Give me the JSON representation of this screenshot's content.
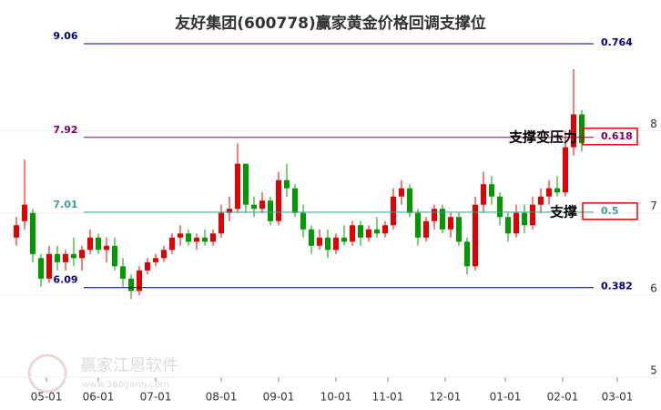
{
  "chart_data": {
    "type": "candlestick",
    "title": "友好集团(600778)赢家黄金价格回调支撑位",
    "up_color": "#e00000",
    "down_color": "#009900",
    "xlim": [
      0,
      236
    ],
    "xticks": [
      {
        "value": 11,
        "label": "05-01"
      },
      {
        "value": 30,
        "label": "06-01"
      },
      {
        "value": 51,
        "label": "07-01"
      },
      {
        "value": 75,
        "label": "08-01"
      },
      {
        "value": 96,
        "label": "09-01"
      },
      {
        "value": 117,
        "label": "10-01"
      },
      {
        "value": 136,
        "label": "11-01"
      },
      {
        "value": 157,
        "label": "12-01"
      },
      {
        "value": 179,
        "label": "01-01"
      },
      {
        "value": 200,
        "label": "02-01"
      },
      {
        "value": 220,
        "label": "03-01"
      }
    ],
    "ylim": [
      5,
      9.26
    ],
    "yticks": [
      5,
      6,
      7,
      8
    ],
    "x": [
      0,
      3,
      6,
      9,
      12,
      15,
      18,
      21,
      24,
      27,
      30,
      33,
      36,
      39,
      42,
      45,
      48,
      51,
      54,
      57,
      60,
      63,
      66,
      69,
      72,
      75,
      78,
      81,
      84,
      87,
      90,
      93,
      96,
      99,
      102,
      105,
      108,
      111,
      114,
      117,
      120,
      123,
      126,
      129,
      132,
      135,
      138,
      141,
      144,
      147,
      150,
      153,
      156,
      159,
      162,
      165,
      168,
      171,
      174,
      177,
      180,
      183,
      186,
      189,
      192,
      195,
      198,
      201,
      204,
      207
    ],
    "values": [
      [
        6.7,
        6.95,
        6.6,
        6.85
      ],
      [
        6.9,
        7.65,
        6.8,
        7.1
      ],
      [
        7.0,
        7.05,
        6.4,
        6.5
      ],
      [
        6.45,
        6.5,
        6.1,
        6.2
      ],
      [
        6.2,
        6.6,
        6.15,
        6.5
      ],
      [
        6.5,
        6.6,
        6.3,
        6.4
      ],
      [
        6.4,
        6.55,
        6.3,
        6.5
      ],
      [
        6.5,
        6.7,
        6.35,
        6.45
      ],
      [
        6.45,
        6.6,
        6.3,
        6.55
      ],
      [
        6.55,
        6.8,
        6.5,
        6.7
      ],
      [
        6.7,
        6.75,
        6.5,
        6.55
      ],
      [
        6.55,
        6.7,
        6.4,
        6.6
      ],
      [
        6.6,
        6.7,
        6.3,
        6.35
      ],
      [
        6.35,
        6.45,
        6.1,
        6.2
      ],
      [
        6.2,
        6.25,
        5.95,
        6.05
      ],
      [
        6.05,
        6.35,
        6.0,
        6.3
      ],
      [
        6.3,
        6.45,
        6.25,
        6.4
      ],
      [
        6.4,
        6.5,
        6.35,
        6.45
      ],
      [
        6.45,
        6.6,
        6.4,
        6.55
      ],
      [
        6.55,
        6.75,
        6.5,
        6.7
      ],
      [
        6.7,
        6.85,
        6.6,
        6.75
      ],
      [
        6.75,
        6.8,
        6.6,
        6.65
      ],
      [
        6.65,
        6.75,
        6.55,
        6.7
      ],
      [
        6.7,
        6.8,
        6.6,
        6.65
      ],
      [
        6.65,
        6.8,
        6.6,
        6.75
      ],
      [
        6.75,
        7.1,
        6.7,
        7.0
      ],
      [
        7.0,
        7.2,
        6.9,
        7.05
      ],
      [
        7.05,
        7.85,
        7.0,
        7.6
      ],
      [
        7.6,
        7.6,
        7.0,
        7.1
      ],
      [
        7.1,
        7.2,
        6.95,
        7.05
      ],
      [
        7.05,
        7.25,
        7.0,
        7.15
      ],
      [
        7.15,
        7.2,
        6.85,
        6.9
      ],
      [
        6.9,
        7.5,
        6.85,
        7.4
      ],
      [
        7.4,
        7.6,
        7.2,
        7.3
      ],
      [
        7.3,
        7.35,
        6.95,
        7.0
      ],
      [
        7.0,
        7.1,
        6.7,
        6.8
      ],
      [
        6.8,
        6.85,
        6.5,
        6.6
      ],
      [
        6.6,
        6.8,
        6.55,
        6.7
      ],
      [
        6.7,
        6.8,
        6.45,
        6.55
      ],
      [
        6.55,
        6.75,
        6.5,
        6.7
      ],
      [
        6.7,
        6.85,
        6.6,
        6.65
      ],
      [
        6.65,
        6.9,
        6.6,
        6.85
      ],
      [
        6.85,
        6.9,
        6.6,
        6.7
      ],
      [
        6.7,
        6.85,
        6.65,
        6.8
      ],
      [
        6.8,
        6.95,
        6.7,
        6.75
      ],
      [
        6.75,
        6.9,
        6.7,
        6.85
      ],
      [
        6.85,
        7.3,
        6.8,
        7.2
      ],
      [
        7.2,
        7.4,
        7.1,
        7.3
      ],
      [
        7.3,
        7.35,
        6.95,
        7.0
      ],
      [
        7.0,
        7.05,
        6.6,
        6.7
      ],
      [
        6.7,
        6.95,
        6.65,
        6.9
      ],
      [
        6.9,
        7.1,
        6.8,
        7.05
      ],
      [
        7.05,
        7.1,
        6.75,
        6.8
      ],
      [
        6.8,
        7.0,
        6.7,
        6.95
      ],
      [
        6.95,
        7.0,
        6.6,
        6.65
      ],
      [
        6.65,
        6.7,
        6.25,
        6.35
      ],
      [
        6.35,
        7.2,
        6.3,
        7.1
      ],
      [
        7.1,
        7.5,
        7.0,
        7.35
      ],
      [
        7.35,
        7.45,
        7.1,
        7.2
      ],
      [
        7.2,
        7.25,
        6.85,
        6.95
      ],
      [
        6.95,
        7.0,
        6.65,
        6.75
      ],
      [
        6.75,
        7.1,
        6.7,
        7.0
      ],
      [
        7.0,
        7.1,
        6.75,
        6.85
      ],
      [
        6.85,
        7.2,
        6.8,
        7.1
      ],
      [
        7.1,
        7.3,
        7.0,
        7.2
      ],
      [
        7.2,
        7.4,
        7.1,
        7.3
      ],
      [
        7.3,
        7.45,
        7.2,
        7.25
      ],
      [
        7.25,
        8.0,
        7.2,
        7.8
      ],
      [
        7.8,
        8.75,
        7.7,
        8.2
      ],
      [
        8.2,
        8.25,
        7.75,
        7.85
      ]
    ],
    "levels": [
      {
        "value": 9.06,
        "ratio": "0.764",
        "color": "#000080",
        "boxed": false
      },
      {
        "value": 7.92,
        "ratio": "0.618",
        "color": "#800060",
        "boxed": true
      },
      {
        "value": 7.01,
        "ratio": "0.5",
        "color": "#40a090",
        "boxed": true
      },
      {
        "value": 6.09,
        "ratio": "0.382",
        "color": "#000080",
        "boxed": false
      }
    ],
    "annotations": [
      {
        "text": "支撑变压力",
        "level": 1
      },
      {
        "text": "支撑",
        "level": 2
      }
    ],
    "watermark": {
      "name": "赢家江恩软件",
      "url": "www.360gann.com"
    }
  }
}
